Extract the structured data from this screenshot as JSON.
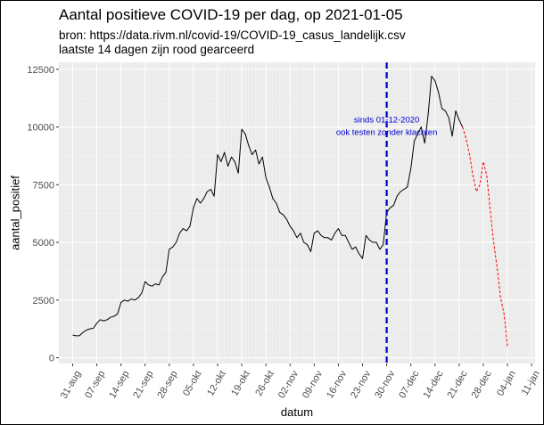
{
  "chart_data": {
    "type": "line",
    "title": "Aantal positieve COVID-19 per dag, op 2021-01-05",
    "subtitle_lines": [
      "bron: https://data.rivm.nl/covid-19/COVID-19_casus_landelijk.csv",
      "laatste 14 dagen zijn rood gearceerd"
    ],
    "xlabel": "datum",
    "ylabel": "aantal_positief",
    "ylim": [
      -250,
      12800
    ],
    "yticks": [
      0,
      2500,
      5000,
      7500,
      10000,
      12500
    ],
    "ytick_labels": [
      "0",
      "2500",
      "5000",
      "7500",
      "10000",
      "12500"
    ],
    "x_range": [
      "2020-08-27",
      "2021-01-12"
    ],
    "xticks": [
      "2020-08-31",
      "2020-09-07",
      "2020-09-14",
      "2020-09-21",
      "2020-09-28",
      "2020-10-05",
      "2020-10-12",
      "2020-10-19",
      "2020-10-26",
      "2020-11-02",
      "2020-11-09",
      "2020-11-16",
      "2020-11-23",
      "2020-11-30",
      "2020-12-07",
      "2020-12-14",
      "2020-12-21",
      "2020-12-28",
      "2021-01-04",
      "2021-01-11"
    ],
    "xtick_labels": [
      "31-aug",
      "07-sep",
      "14-sep",
      "21-sep",
      "28-sep",
      "05-okt",
      "12-okt",
      "19-okt",
      "26-okt",
      "02-nov",
      "09-nov",
      "16-nov",
      "23-nov",
      "30-nov",
      "07-dec",
      "14-dec",
      "21-dec",
      "28-dec",
      "04-jan",
      "11-jan"
    ],
    "grid": true,
    "background": "#ebebeb",
    "series": [
      {
        "color": "#000000",
        "style": "solid",
        "x": [
          "2020-08-31",
          "2020-09-01",
          "2020-09-02",
          "2020-09-03",
          "2020-09-04",
          "2020-09-05",
          "2020-09-06",
          "2020-09-07",
          "2020-09-08",
          "2020-09-09",
          "2020-09-10",
          "2020-09-11",
          "2020-09-12",
          "2020-09-13",
          "2020-09-14",
          "2020-09-15",
          "2020-09-16",
          "2020-09-17",
          "2020-09-18",
          "2020-09-19",
          "2020-09-20",
          "2020-09-21",
          "2020-09-22",
          "2020-09-23",
          "2020-09-24",
          "2020-09-25",
          "2020-09-26",
          "2020-09-27",
          "2020-09-28",
          "2020-09-29",
          "2020-09-30",
          "2020-10-01",
          "2020-10-02",
          "2020-10-03",
          "2020-10-04",
          "2020-10-05",
          "2020-10-06",
          "2020-10-07",
          "2020-10-08",
          "2020-10-09",
          "2020-10-10",
          "2020-10-11",
          "2020-10-12",
          "2020-10-13",
          "2020-10-14",
          "2020-10-15",
          "2020-10-16",
          "2020-10-17",
          "2020-10-18",
          "2020-10-19",
          "2020-10-20",
          "2020-10-21",
          "2020-10-22",
          "2020-10-23",
          "2020-10-24",
          "2020-10-25",
          "2020-10-26",
          "2020-10-27",
          "2020-10-28",
          "2020-10-29",
          "2020-10-30",
          "2020-10-31",
          "2020-11-01",
          "2020-11-02",
          "2020-11-03",
          "2020-11-04",
          "2020-11-05",
          "2020-11-06",
          "2020-11-07",
          "2020-11-08",
          "2020-11-09",
          "2020-11-10",
          "2020-11-11",
          "2020-11-12",
          "2020-11-13",
          "2020-11-14",
          "2020-11-15",
          "2020-11-16",
          "2020-11-17",
          "2020-11-18",
          "2020-11-19",
          "2020-11-20",
          "2020-11-21",
          "2020-11-22",
          "2020-11-23",
          "2020-11-24",
          "2020-11-25",
          "2020-11-26",
          "2020-11-27",
          "2020-11-28",
          "2020-11-29",
          "2020-11-30",
          "2020-12-01",
          "2020-12-02",
          "2020-12-03",
          "2020-12-04",
          "2020-12-05",
          "2020-12-06",
          "2020-12-07",
          "2020-12-08",
          "2020-12-09",
          "2020-12-10",
          "2020-12-11",
          "2020-12-12",
          "2020-12-13",
          "2020-12-14",
          "2020-12-15",
          "2020-12-16",
          "2020-12-17",
          "2020-12-18",
          "2020-12-19",
          "2020-12-20",
          "2020-12-21",
          "2020-12-22"
        ],
        "values": [
          980,
          950,
          960,
          1100,
          1200,
          1250,
          1280,
          1500,
          1650,
          1600,
          1650,
          1750,
          1800,
          1900,
          2400,
          2500,
          2450,
          2550,
          2500,
          2600,
          2800,
          3300,
          3150,
          3100,
          3200,
          3150,
          3500,
          3700,
          4700,
          4800,
          5000,
          5400,
          5600,
          5500,
          5700,
          6500,
          6900,
          6700,
          6900,
          7200,
          7300,
          7000,
          8800,
          8500,
          8900,
          8300,
          8700,
          8500,
          8000,
          9900,
          9700,
          9200,
          8800,
          9000,
          8400,
          8700,
          7800,
          7400,
          6900,
          6700,
          6300,
          6200,
          6000,
          5700,
          5500,
          5200,
          5400,
          5000,
          4900,
          4600,
          5400,
          5500,
          5300,
          5200,
          5200,
          5100,
          5400,
          5600,
          5300,
          5300,
          5000,
          4700,
          4800,
          4500,
          4300,
          5300,
          5100,
          5000,
          5000,
          4700,
          4900,
          6300,
          6500,
          6600,
          7000,
          7200,
          7300,
          7400,
          8200,
          9400,
          9700,
          10000,
          9300,
          10500,
          12200,
          12000,
          11500,
          10800,
          10700,
          10400,
          9600,
          10700,
          10300,
          10000
        ]
      },
      {
        "color": "#ff0000",
        "style": "dashed",
        "x": [
          "2020-12-22",
          "2020-12-23",
          "2020-12-24",
          "2020-12-25",
          "2020-12-26",
          "2020-12-27",
          "2020-12-28",
          "2020-12-29",
          "2020-12-30",
          "2020-12-31",
          "2021-01-01",
          "2021-01-02",
          "2021-01-03",
          "2021-01-04"
        ],
        "values": [
          10000,
          9500,
          8800,
          7900,
          7200,
          7500,
          8500,
          7900,
          6400,
          5000,
          3900,
          2600,
          1900,
          500
        ]
      }
    ],
    "vline": {
      "x": "2020-11-30",
      "color": "#0000cc",
      "style": "dashed"
    },
    "annotations": [
      {
        "x": "2020-11-30",
        "y": 10200,
        "text": "sinds 01-12-2020"
      },
      {
        "x": "2020-11-30",
        "y": 9650,
        "text": "ook testen zonder klachten"
      }
    ]
  }
}
